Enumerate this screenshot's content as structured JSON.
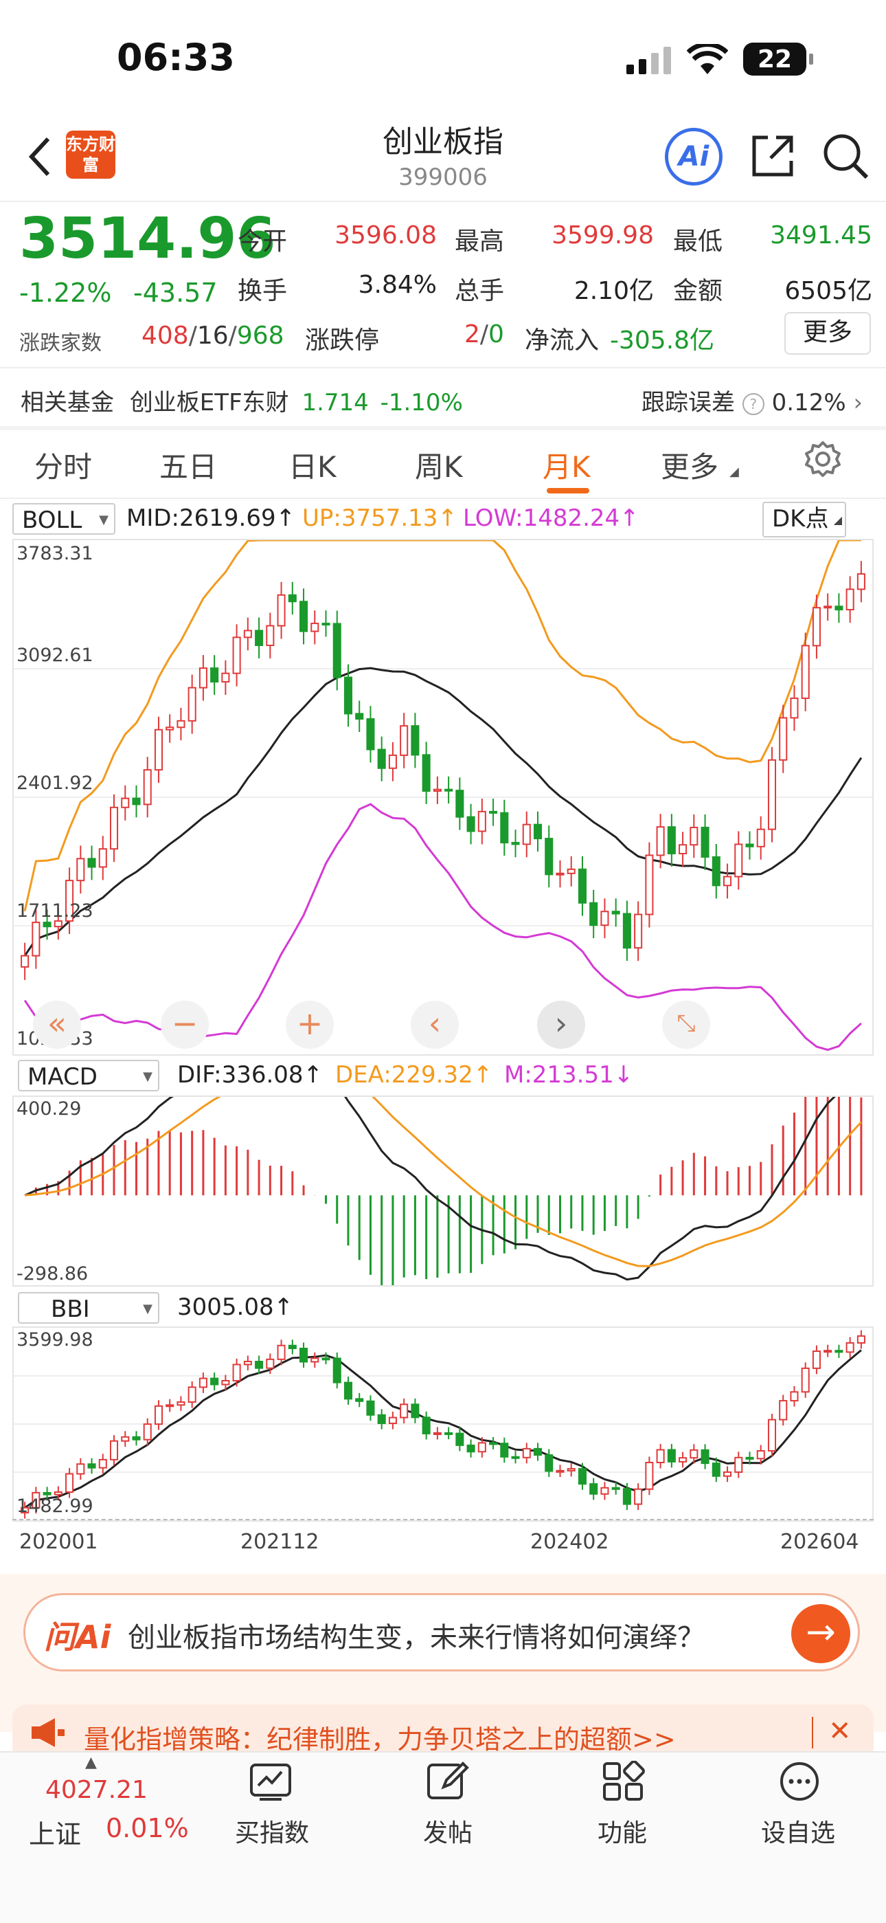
{
  "status_bar": {
    "time": "06:33",
    "battery": "22"
  },
  "header": {
    "title": "创业板指",
    "code": "399006",
    "logo_text": "东方财富",
    "ai_label": "Ai"
  },
  "quote": {
    "price": "3514.96",
    "change_pct": "-1.22%",
    "change": "-43.57",
    "open_label": "今开",
    "open": "3596.08",
    "high_label": "最高",
    "high": "3599.98",
    "low_label": "最低",
    "low": "3491.45",
    "turnover_label": "换手",
    "turnover": "3.84%",
    "volume_label": "总手",
    "volume": "2.10亿",
    "amount_label": "金额",
    "amount": "6505亿",
    "breadth_label": "涨跌家数",
    "breadth_up": "408",
    "breadth_flat": "16",
    "breadth_down": "968",
    "limit_label": "涨跌停",
    "limit_up": "2",
    "limit_down": "0",
    "netflow_label": "净流入",
    "netflow": "-305.8亿",
    "more": "更多"
  },
  "fund_row": {
    "label": "相关基金",
    "name": "创业板ETF东财",
    "price": "1.714",
    "change": "-1.10%",
    "tracking_label": "跟踪误差",
    "tracking": "0.12%"
  },
  "tabs": [
    {
      "label": "分时"
    },
    {
      "label": "五日"
    },
    {
      "label": "日K"
    },
    {
      "label": "周K"
    },
    {
      "label": "月K",
      "active": true
    },
    {
      "label": "更多"
    }
  ],
  "boll": {
    "selector": "BOLL",
    "mid": "MID:2619.69",
    "up": "UP:3757.13",
    "low": "LOW:1482.24",
    "dk": "DK点",
    "y_labels": [
      "3783.31",
      "3092.61",
      "2401.92",
      "1711.23",
      "1020.53"
    ]
  },
  "macd": {
    "selector": "MACD",
    "dif": "DIF:336.08",
    "dea": "DEA:229.32",
    "m": "M:213.51",
    "y_labels": [
      "400.29",
      "-298.86"
    ]
  },
  "bbi": {
    "selector": "BBI",
    "value": "3005.08",
    "y_labels": [
      "3599.98",
      "1482.99"
    ]
  },
  "x_labels": [
    "202001",
    "202112",
    "202402",
    "202604"
  ],
  "chart_data": {
    "type": "candlestick",
    "period": "monthly",
    "x_range": [
      "202001",
      "202604"
    ],
    "y_range": [
      1020.53,
      3783.31
    ],
    "indicators": {
      "BOLL_MID": 2619.69,
      "BOLL_UP": 3757.13,
      "BOLL_LOW": 1482.24,
      "MACD_DIF": 336.08,
      "MACD_DEA": 229.32,
      "MACD_M": 213.51,
      "BBI": 3005.08
    }
  },
  "ai_banner": {
    "brand": "问Ai",
    "text": "创业板指市场结构生变，未来行情将如何演绎？"
  },
  "promo": {
    "text": "量化指增策略：纪律制胜，力争贝塔之上的超额>>"
  },
  "bottom_nav": {
    "index_price": "4027.21",
    "index_name": "上证",
    "index_change": "0.01%",
    "items": [
      {
        "label": "买指数"
      },
      {
        "label": "发帖"
      },
      {
        "label": "功能"
      },
      {
        "label": "设自选"
      }
    ]
  },
  "colors": {
    "up": "#e03a3a",
    "down": "#1a9a2c",
    "accent": "#f06a1a",
    "mid_line": "#222222",
    "up_line": "#f39a1e",
    "low_line": "#d43ad4"
  }
}
